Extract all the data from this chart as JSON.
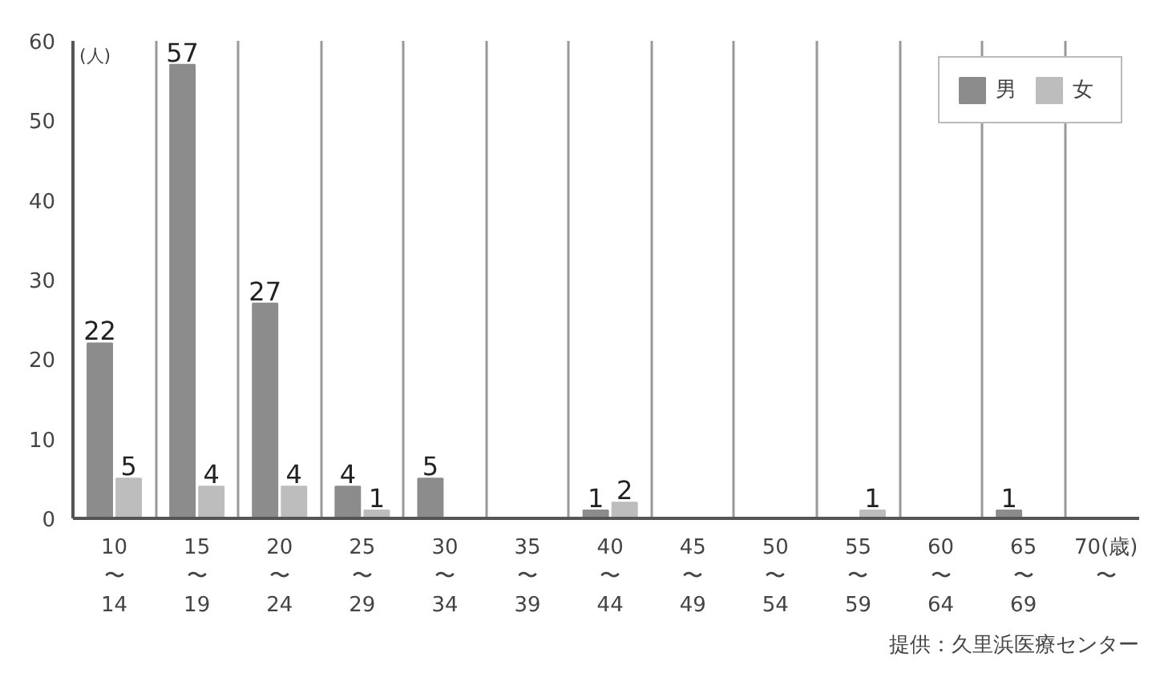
{
  "chart_data": {
    "type": "bar",
    "ylabel": "(人)",
    "categories": [
      "10\n〜\n14",
      "15\n〜\n19",
      "20\n〜\n24",
      "25\n〜\n29",
      "30\n〜\n34",
      "35\n〜\n39",
      "40\n〜\n44",
      "45\n〜\n49",
      "50\n〜\n54",
      "55\n〜\n59",
      "60\n〜\n64",
      "65\n〜\n69",
      "70(歳)\n〜"
    ],
    "series": [
      {
        "name": "男",
        "color": "#8c8c8c",
        "values": [
          22,
          57,
          27,
          4,
          5,
          0,
          1,
          0,
          0,
          0,
          0,
          1,
          0
        ],
        "value_labels": [
          "22",
          "57",
          "27",
          "4",
          "5",
          null,
          "1",
          null,
          null,
          null,
          null,
          "1",
          null
        ]
      },
      {
        "name": "女",
        "color": "#bdbdbd",
        "values": [
          5,
          4,
          4,
          1,
          0,
          0,
          2,
          0,
          0,
          1,
          0,
          0,
          0
        ],
        "value_labels": [
          "5",
          "4",
          "4",
          "1",
          null,
          null,
          "2",
          null,
          null,
          "1",
          null,
          null,
          null
        ]
      }
    ],
    "ylim": [
      0,
      60
    ],
    "yticks": [
      0,
      10,
      20,
      30,
      40,
      50,
      60
    ],
    "grid": "x",
    "legend": "top right",
    "annotations": [
      "提供：久里浜医療センター"
    ]
  }
}
